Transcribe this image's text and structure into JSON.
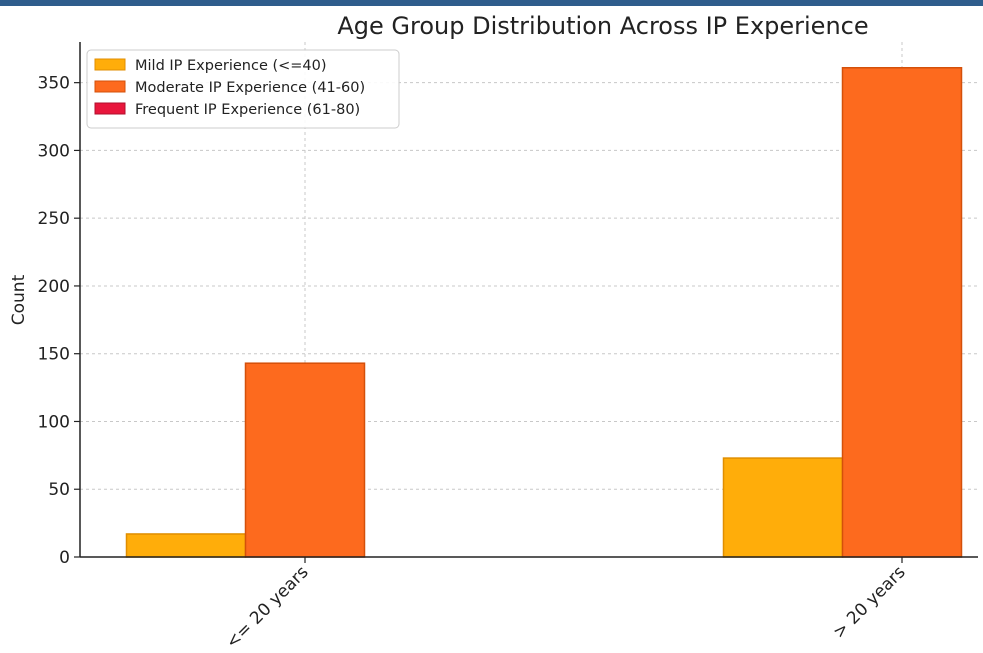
{
  "theme": {
    "top_band_color": "#2f5d8c",
    "axis_color": "#222222",
    "grid_color": "#c8c8c8"
  },
  "chart_data": {
    "type": "bar",
    "title": "Age Group Distribution Across IP Experience",
    "xlabel": "",
    "ylabel": "Count",
    "categories": [
      "<= 20 years",
      "> 20 years"
    ],
    "series": [
      {
        "name": "Mild IP Experience (<=40)",
        "values": [
          17,
          73
        ],
        "color": "#ffad0a",
        "edge": "#e08e00"
      },
      {
        "name": "Moderate IP Experience (41-60)",
        "values": [
          143,
          361
        ],
        "color": "#fd6a1e",
        "edge": "#d4500a"
      },
      {
        "name": "Frequent IP Experience (61-80)",
        "values": [
          0,
          0
        ],
        "color": "#e8163c",
        "edge": "#b00f2c"
      }
    ],
    "ylim": [
      0,
      380
    ],
    "yticks": [
      0,
      50,
      100,
      150,
      200,
      250,
      300,
      350
    ],
    "grid": true,
    "legend_position": "top-left"
  }
}
